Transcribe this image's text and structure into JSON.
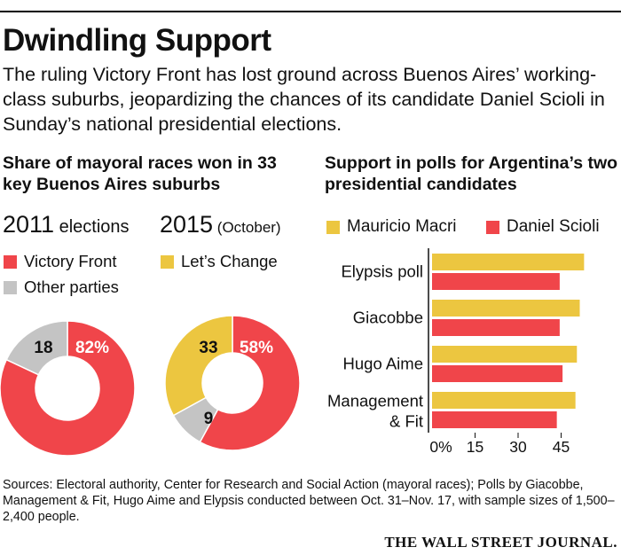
{
  "headline": "Dwindling Support",
  "dek": "The ruling Victory Front has lost ground across Buenos Aires’ working-class suburbs, jeopardizing the chances of its candidate Daniel Scioli in Sunday’s national presidential elections.",
  "left_title": "Share of mayoral races won in 33 key Buenos Aires suburbs",
  "right_title": "Support in polls for Argentina’s two presidential candidates",
  "elections": {
    "e2011": {
      "year": "2011",
      "suffix": " elections"
    },
    "e2015": {
      "year": "2015",
      "suffix": " (October)"
    }
  },
  "legend_left": [
    "Victory Front",
    "Let’s Change",
    "Other parties"
  ],
  "legend_right": [
    "Mauricio Macri",
    "Daniel Scioli"
  ],
  "colors": {
    "red": "#f0454a",
    "yellow": "#ecc640",
    "gray": "#c4c4c4"
  },
  "sources": "Sources: Electoral authority, Center for Research and Social Action (mayoral races); Polls by Giacobbe, Management & Fit, Hugo Aime and Elypsis conducted between Oct. 31–Nov. 17, with sample sizes of 1,500–2,400 people.",
  "credit": "THE WALL STREET JOURNAL.",
  "chart_data": [
    {
      "type": "pie",
      "title": "2011 elections",
      "slices": [
        {
          "name": "Victory Front",
          "value": 82,
          "label": "82%",
          "color": "#f0454a"
        },
        {
          "name": "Other parties",
          "value": 18,
          "label": "18",
          "color": "#c4c4c4"
        }
      ]
    },
    {
      "type": "pie",
      "title": "2015 (October)",
      "slices": [
        {
          "name": "Victory Front",
          "value": 58,
          "label": "58%",
          "color": "#f0454a"
        },
        {
          "name": "Other parties",
          "value": 9,
          "label": "9",
          "color": "#c4c4c4"
        },
        {
          "name": "Let’s Change",
          "value": 33,
          "label": "33",
          "color": "#ecc640"
        }
      ]
    },
    {
      "type": "bar",
      "orientation": "horizontal",
      "categories": [
        "Elypsis poll",
        "Giacobbe",
        "Hugo Aime",
        "Management\n& Fit"
      ],
      "series": [
        {
          "name": "Mauricio Macri",
          "values": [
            53,
            51.5,
            50.5,
            50
          ],
          "color": "#ecc640"
        },
        {
          "name": "Daniel Scioli",
          "values": [
            44.5,
            44.5,
            45.5,
            43.5
          ],
          "color": "#f0454a"
        }
      ],
      "xticks": [
        "0%",
        "15",
        "30",
        "45"
      ],
      "xlim": [
        0,
        60
      ]
    }
  ]
}
